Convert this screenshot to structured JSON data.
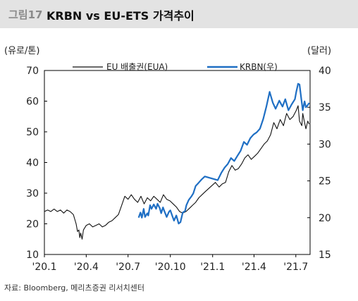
{
  "figure": {
    "number": "그림17",
    "title": "KRBN vs EU-ETS 가격추이"
  },
  "source": "자료: Bloomberg, 메리츠증권 리서치센터",
  "chart_data": {
    "type": "line",
    "left_axis": {
      "label": "(유로/톤)",
      "range": [
        10,
        70
      ],
      "ticks": [
        "10",
        "20",
        "30",
        "40",
        "50",
        "60",
        "70"
      ]
    },
    "right_axis": {
      "label": "(달러)",
      "range": [
        15,
        40
      ],
      "ticks": [
        "15",
        "20",
        "25",
        "30",
        "35",
        "40"
      ]
    },
    "x_axis": {
      "range": [
        "2020-01-01",
        "2021-08-01"
      ],
      "ticks": [
        {
          "date": "2020-01-01",
          "label": "'20.1"
        },
        {
          "date": "2020-04-01",
          "label": "'20.4"
        },
        {
          "date": "2020-07-01",
          "label": "'20.7"
        },
        {
          "date": "2020-10-01",
          "label": "'20.10"
        },
        {
          "date": "2021-01-01",
          "label": "'21.1"
        },
        {
          "date": "2021-04-01",
          "label": "'21.4"
        },
        {
          "date": "2021-07-01",
          "label": "'21.7"
        }
      ]
    },
    "legend_position": "top",
    "series": [
      {
        "name": "EU 배출권(EUA)",
        "axis": "left",
        "color": "#111111",
        "points": [
          [
            "2020-01-01",
            24
          ],
          [
            "2020-01-08",
            24.5
          ],
          [
            "2020-01-15",
            24
          ],
          [
            "2020-01-22",
            24.8
          ],
          [
            "2020-01-29",
            24
          ],
          [
            "2020-02-05",
            24.5
          ],
          [
            "2020-02-12",
            23.5
          ],
          [
            "2020-02-19",
            24.5
          ],
          [
            "2020-02-26",
            24
          ],
          [
            "2020-03-04",
            23
          ],
          [
            "2020-03-10",
            20
          ],
          [
            "2020-03-13",
            17.5
          ],
          [
            "2020-03-16",
            18
          ],
          [
            "2020-03-18",
            15.5
          ],
          [
            "2020-03-20",
            17
          ],
          [
            "2020-03-23",
            15
          ],
          [
            "2020-03-26",
            18
          ],
          [
            "2020-04-01",
            19.5
          ],
          [
            "2020-04-08",
            20
          ],
          [
            "2020-04-15",
            19
          ],
          [
            "2020-04-22",
            19.5
          ],
          [
            "2020-04-29",
            20
          ],
          [
            "2020-05-06",
            19
          ],
          [
            "2020-05-13",
            19.5
          ],
          [
            "2020-05-20",
            20.5
          ],
          [
            "2020-05-27",
            21
          ],
          [
            "2020-06-03",
            22
          ],
          [
            "2020-06-10",
            23
          ],
          [
            "2020-06-17",
            26
          ],
          [
            "2020-06-24",
            29
          ],
          [
            "2020-07-01",
            28
          ],
          [
            "2020-07-08",
            29.5
          ],
          [
            "2020-07-15",
            28
          ],
          [
            "2020-07-22",
            27
          ],
          [
            "2020-07-29",
            29
          ],
          [
            "2020-08-05",
            26.5
          ],
          [
            "2020-08-12",
            28.5
          ],
          [
            "2020-08-19",
            27.5
          ],
          [
            "2020-08-26",
            29
          ],
          [
            "2020-09-02",
            28
          ],
          [
            "2020-09-09",
            27
          ],
          [
            "2020-09-16",
            29.5
          ],
          [
            "2020-09-23",
            28
          ],
          [
            "2020-09-30",
            27.5
          ],
          [
            "2020-10-07",
            26.5
          ],
          [
            "2020-10-14",
            25.5
          ],
          [
            "2020-10-21",
            24
          ],
          [
            "2020-10-28",
            23.5
          ],
          [
            "2020-11-04",
            24
          ],
          [
            "2020-11-11",
            25
          ],
          [
            "2020-11-18",
            26
          ],
          [
            "2020-11-25",
            27
          ],
          [
            "2020-12-02",
            28.5
          ],
          [
            "2020-12-09",
            29.5
          ],
          [
            "2020-12-16",
            30.5
          ],
          [
            "2021-01-07",
            33.5
          ],
          [
            "2021-01-15",
            32
          ],
          [
            "2021-01-22",
            33
          ],
          [
            "2021-01-29",
            33.5
          ],
          [
            "2021-02-05",
            37
          ],
          [
            "2021-02-12",
            39
          ],
          [
            "2021-02-19",
            37.5
          ],
          [
            "2021-02-26",
            38
          ],
          [
            "2021-03-05",
            39.5
          ],
          [
            "2021-03-12",
            41.5
          ],
          [
            "2021-03-19",
            42.5
          ],
          [
            "2021-03-26",
            41
          ],
          [
            "2021-04-02",
            42
          ],
          [
            "2021-04-09",
            43
          ],
          [
            "2021-04-16",
            44.5
          ],
          [
            "2021-04-23",
            46
          ],
          [
            "2021-04-30",
            47
          ],
          [
            "2021-05-07",
            49
          ],
          [
            "2021-05-14",
            53
          ],
          [
            "2021-05-21",
            51
          ],
          [
            "2021-05-28",
            54
          ],
          [
            "2021-06-04",
            52
          ],
          [
            "2021-06-11",
            56
          ],
          [
            "2021-06-18",
            54
          ],
          [
            "2021-06-25",
            55
          ],
          [
            "2021-07-02",
            57
          ],
          [
            "2021-07-06",
            58.5
          ],
          [
            "2021-07-09",
            53.5
          ],
          [
            "2021-07-14",
            52
          ],
          [
            "2021-07-16",
            56
          ],
          [
            "2021-07-20",
            53
          ],
          [
            "2021-07-23",
            51
          ],
          [
            "2021-07-27",
            53.5
          ],
          [
            "2021-07-30",
            52.5
          ]
        ]
      },
      {
        "name": "KRBN(우)",
        "axis": "right",
        "color": "#1f6fc4",
        "points": [
          [
            "2020-07-24",
            20
          ],
          [
            "2020-07-28",
            20.7
          ],
          [
            "2020-07-31",
            20
          ],
          [
            "2020-08-04",
            21.2
          ],
          [
            "2020-08-07",
            20.1
          ],
          [
            "2020-08-12",
            20.6
          ],
          [
            "2020-08-14",
            20.3
          ],
          [
            "2020-08-18",
            21.7
          ],
          [
            "2020-08-21",
            21.2
          ],
          [
            "2020-08-26",
            21.8
          ],
          [
            "2020-08-31",
            21.2
          ],
          [
            "2020-09-03",
            21.9
          ],
          [
            "2020-09-08",
            21.3
          ],
          [
            "2020-09-11",
            20.6
          ],
          [
            "2020-09-15",
            21.4
          ],
          [
            "2020-09-18",
            20.9
          ],
          [
            "2020-09-23",
            20.1
          ],
          [
            "2020-09-28",
            20.8
          ],
          [
            "2020-10-01",
            21
          ],
          [
            "2020-10-06",
            20.1
          ],
          [
            "2020-10-09",
            19.6
          ],
          [
            "2020-10-14",
            20.3
          ],
          [
            "2020-10-19",
            19.2
          ],
          [
            "2020-10-23",
            19.4
          ],
          [
            "2020-10-28",
            20.7
          ],
          [
            "2020-11-02",
            20.9
          ],
          [
            "2020-11-05",
            21.7
          ],
          [
            "2020-11-10",
            22.4
          ],
          [
            "2020-11-16",
            22.9
          ],
          [
            "2020-11-20",
            23.3
          ],
          [
            "2020-11-25",
            24.3
          ],
          [
            "2020-12-01",
            24.7
          ],
          [
            "2020-12-08",
            25.2
          ],
          [
            "2020-12-15",
            25.6
          ],
          [
            "2021-01-12",
            25.1
          ],
          [
            "2021-01-20",
            26.1
          ],
          [
            "2021-01-27",
            26.8
          ],
          [
            "2021-02-03",
            27.3
          ],
          [
            "2021-02-10",
            28.1
          ],
          [
            "2021-02-17",
            27.7
          ],
          [
            "2021-02-24",
            28.4
          ],
          [
            "2021-03-03",
            29.1
          ],
          [
            "2021-03-10",
            30.3
          ],
          [
            "2021-03-17",
            29.9
          ],
          [
            "2021-03-24",
            30.8
          ],
          [
            "2021-03-31",
            31.3
          ],
          [
            "2021-04-07",
            31.6
          ],
          [
            "2021-04-14",
            32.1
          ],
          [
            "2021-04-21",
            33.4
          ],
          [
            "2021-04-28",
            35.1
          ],
          [
            "2021-05-05",
            37.1
          ],
          [
            "2021-05-12",
            35.6
          ],
          [
            "2021-05-18",
            34.8
          ],
          [
            "2021-05-26",
            35.9
          ],
          [
            "2021-06-02",
            35.1
          ],
          [
            "2021-06-08",
            36.1
          ],
          [
            "2021-06-15",
            34.6
          ],
          [
            "2021-06-22",
            35.4
          ],
          [
            "2021-06-29",
            36.1
          ],
          [
            "2021-07-02",
            37.1
          ],
          [
            "2021-07-06",
            38.2
          ],
          [
            "2021-07-09",
            38.1
          ],
          [
            "2021-07-13",
            36.1
          ],
          [
            "2021-07-16",
            34.6
          ],
          [
            "2021-07-20",
            35.8
          ],
          [
            "2021-07-23",
            35
          ],
          [
            "2021-07-27",
            35.3
          ],
          [
            "2021-07-30",
            35.6
          ]
        ]
      }
    ]
  }
}
